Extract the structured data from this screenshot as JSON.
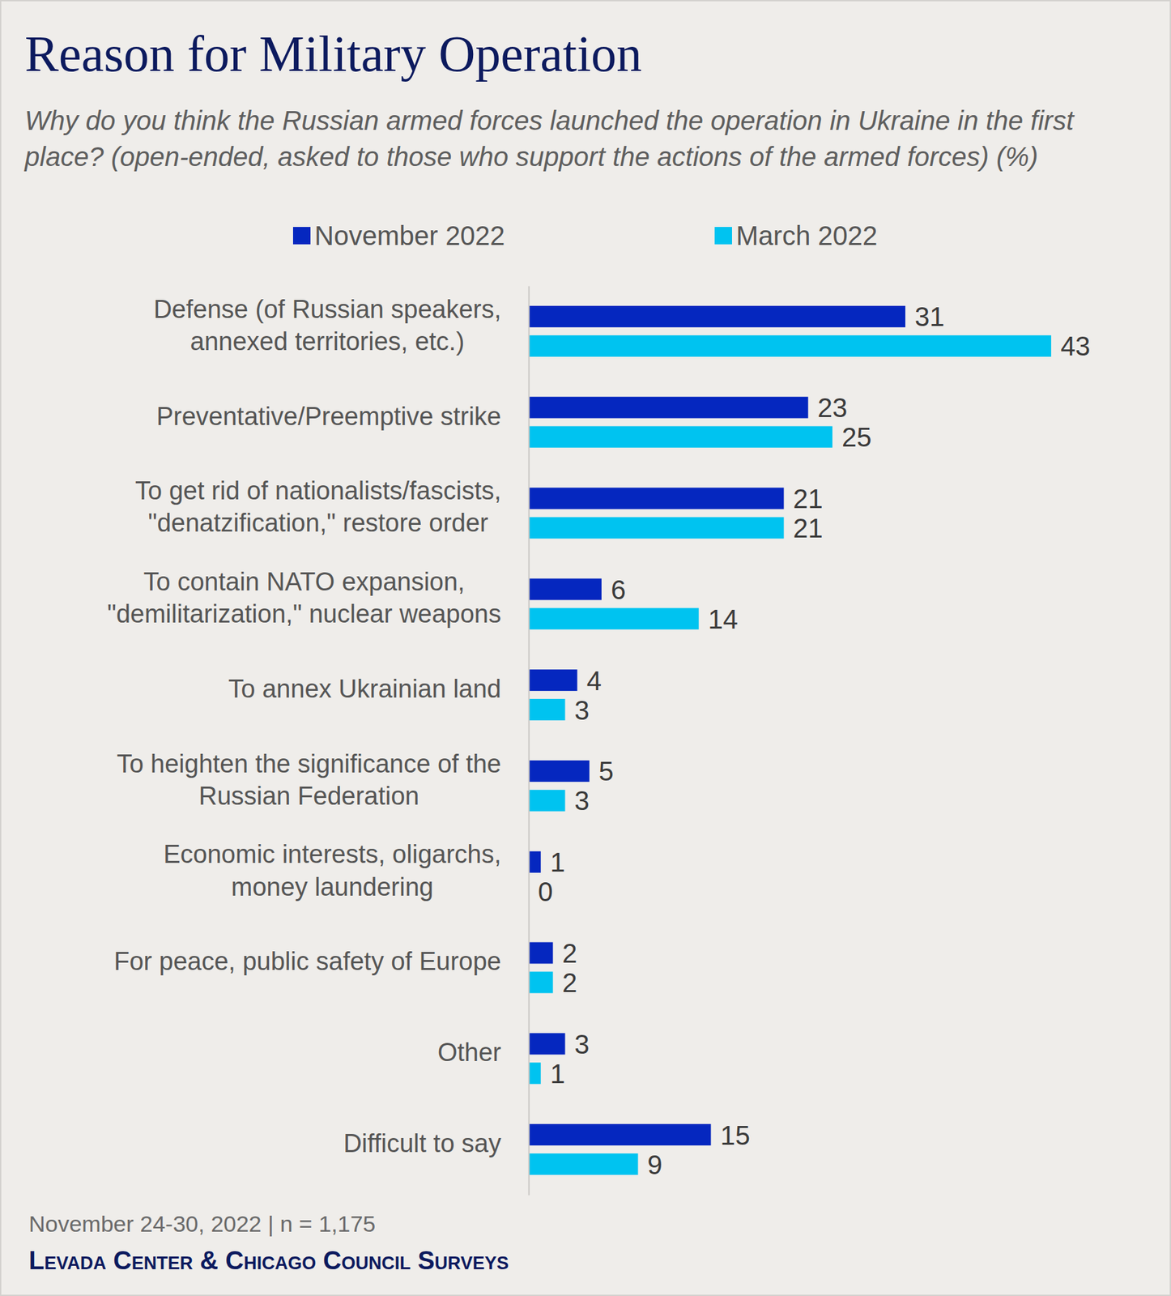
{
  "chart_data": {
    "type": "bar",
    "orientation": "horizontal",
    "title": "Reason for Military Operation",
    "subtitle": "Why do you think the Russian armed forces launched the operation in Ukraine in the first place? (open-ended, asked to those who support the actions of the armed forces) (%)",
    "categories": [
      "Defense (of Russian speakers,\nannexed territories, etc.)",
      "Preventative/Preemptive strike",
      "To get rid of nationalists/fascists,\n\"denatzification,\" restore order",
      "To contain NATO expansion,\n\"demilitarization,\" nuclear weapons",
      "To annex Ukrainian land",
      "To heighten the significance of the\nRussian Federation",
      "Economic interests, oligarchs,\nmoney laundering",
      "For peace, public safety of Europe",
      "Other",
      "Difficult to say"
    ],
    "series": [
      {
        "name": "November 2022",
        "color": "#0527bf",
        "values": [
          31,
          23,
          21,
          6,
          4,
          5,
          1,
          2,
          3,
          15
        ]
      },
      {
        "name": "March 2022",
        "color": "#00c3f0",
        "values": [
          43,
          25,
          21,
          14,
          3,
          3,
          0,
          2,
          1,
          9
        ]
      }
    ],
    "xlim": [
      0,
      50
    ],
    "grid": false,
    "legend": "top",
    "data_labels": true,
    "tick_labels": "y",
    "caption": "November 24-30, 2022 | n = 1,175",
    "source": "Levada Center & Chicago Council Surveys"
  }
}
